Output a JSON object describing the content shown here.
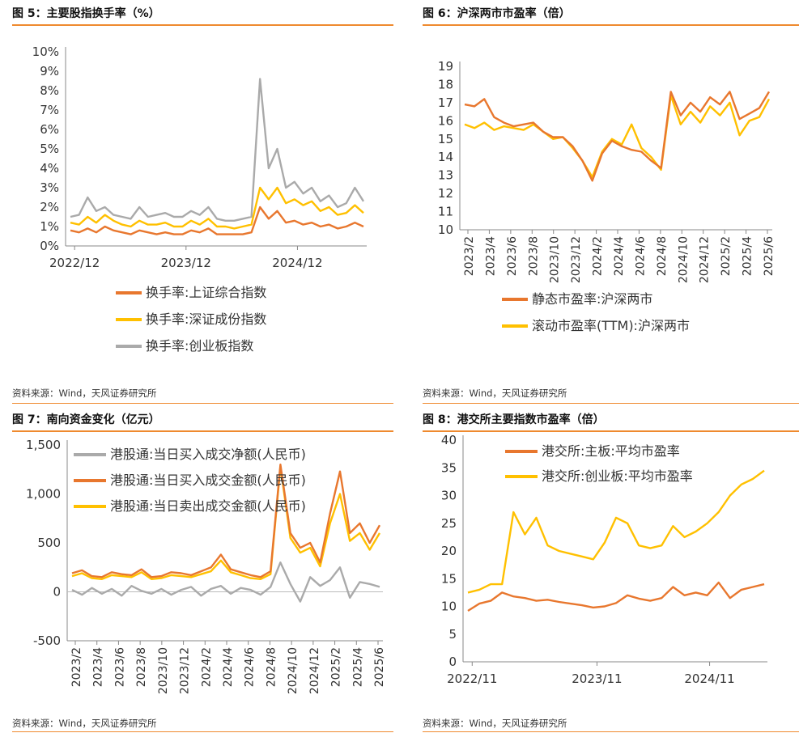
{
  "colors": {
    "orange": "#E8772E",
    "yellow": "#FFC000",
    "gray": "#AAAAAA",
    "rule": "#EF8A2E"
  },
  "source": "资料来源：Wind，天风证券研究所",
  "chart_data": [
    {
      "type": "line",
      "title": "图 5：主要股指换手率（%）",
      "y_ticks": [
        "10%",
        "9%",
        "8%",
        "7%",
        "6%",
        "5%",
        "4%",
        "3%",
        "2%",
        "1%",
        "0%"
      ],
      "ylim": [
        0,
        10
      ],
      "x_ticks": [
        "2022/12",
        "2023/12",
        "2024/12"
      ],
      "series": [
        {
          "name": "换手率:上证综合指数",
          "color": "#E8772E",
          "y": [
            0.8,
            0.7,
            0.9,
            0.7,
            1.0,
            0.8,
            0.7,
            0.6,
            0.8,
            0.7,
            0.6,
            0.7,
            0.6,
            0.6,
            0.8,
            0.7,
            0.9,
            0.6,
            0.6,
            0.6,
            0.6,
            0.7,
            2.0,
            1.4,
            1.8,
            1.2,
            1.3,
            1.1,
            1.2,
            1.0,
            1.1,
            0.9,
            1.0,
            1.2,
            1.0
          ]
        },
        {
          "name": "换手率:深证成份指数",
          "color": "#FFC000",
          "y": [
            1.2,
            1.1,
            1.5,
            1.2,
            1.6,
            1.3,
            1.1,
            1.0,
            1.3,
            1.1,
            1.1,
            1.2,
            1.0,
            1.0,
            1.3,
            1.1,
            1.4,
            1.0,
            1.0,
            0.9,
            1.0,
            1.1,
            3.0,
            2.4,
            3.0,
            2.2,
            2.4,
            2.1,
            2.3,
            1.8,
            2.0,
            1.6,
            1.7,
            2.1,
            1.7
          ]
        },
        {
          "name": "换手率:创业板指数",
          "color": "#AAAAAA",
          "y": [
            1.5,
            1.6,
            2.5,
            1.8,
            2.0,
            1.6,
            1.5,
            1.4,
            2.0,
            1.5,
            1.6,
            1.7,
            1.5,
            1.5,
            1.8,
            1.6,
            2.0,
            1.4,
            1.3,
            1.3,
            1.4,
            1.5,
            8.6,
            4.0,
            5.0,
            3.0,
            3.3,
            2.7,
            3.0,
            2.3,
            2.6,
            2.0,
            2.2,
            3.0,
            2.3
          ]
        }
      ]
    },
    {
      "type": "line",
      "title": "图 6：沪深两市市盈率（倍）",
      "y_ticks": [
        "19",
        "18",
        "17",
        "16",
        "15",
        "14",
        "13",
        "12",
        "11",
        "10"
      ],
      "ylim": [
        10,
        19
      ],
      "x_ticks": [
        "2023/2",
        "2023/4",
        "2023/6",
        "2023/8",
        "2023/10",
        "2023/12",
        "2024/2",
        "2024/4",
        "2024/6",
        "2024/8",
        "2024/10",
        "2024/12",
        "2025/2",
        "2025/4",
        "2025/6"
      ],
      "series": [
        {
          "name": "静态市盈率:沪深两市",
          "color": "#E8772E",
          "y": [
            16.9,
            16.8,
            17.2,
            16.2,
            15.9,
            15.7,
            15.8,
            15.9,
            15.4,
            15.1,
            15.1,
            14.6,
            13.8,
            12.7,
            14.2,
            14.9,
            14.6,
            14.4,
            14.3,
            13.8,
            13.4,
            17.6,
            16.3,
            17.0,
            16.5,
            17.3,
            16.9,
            17.6,
            16.1,
            16.4,
            16.7,
            17.6
          ]
        },
        {
          "name": "滚动市盈率(TTM):沪深两市",
          "color": "#FFC000",
          "y": [
            15.8,
            15.6,
            15.9,
            15.5,
            15.7,
            15.6,
            15.5,
            15.8,
            15.4,
            15.0,
            15.1,
            14.5,
            13.8,
            12.9,
            14.3,
            15.0,
            14.7,
            15.8,
            14.5,
            14.0,
            13.3,
            17.4,
            15.8,
            16.5,
            15.9,
            16.8,
            16.3,
            17.0,
            15.2,
            16.0,
            16.2,
            17.2
          ]
        }
      ]
    },
    {
      "type": "line",
      "title": "图 7：南向资金变化（亿元）",
      "y_ticks": [
        "1,500",
        "1,000",
        "500",
        "0",
        "-500"
      ],
      "ylim": [
        -500,
        1500
      ],
      "x_ticks": [
        "2023/2",
        "2023/4",
        "2023/6",
        "2023/8",
        "2023/10",
        "2023/12",
        "2024/2",
        "2024/4",
        "2024/6",
        "2024/8",
        "2024/10",
        "2024/12",
        "2025/2",
        "2025/4",
        "2025/6"
      ],
      "series": [
        {
          "name": "港股通:当日买入成交净额(人民币)",
          "color": "#AAAAAA",
          "y": [
            20,
            -30,
            40,
            -20,
            30,
            -40,
            60,
            10,
            -20,
            30,
            -30,
            20,
            50,
            -40,
            30,
            60,
            -20,
            40,
            20,
            -30,
            50,
            300,
            80,
            -100,
            150,
            60,
            120,
            250,
            -60,
            100,
            80,
            50
          ]
        },
        {
          "name": "港股通:当日买入成交金额(人民币)",
          "color": "#E8772E",
          "y": [
            190,
            220,
            160,
            150,
            200,
            180,
            170,
            230,
            150,
            160,
            200,
            190,
            170,
            210,
            250,
            380,
            230,
            200,
            170,
            150,
            210,
            1300,
            600,
            450,
            500,
            300,
            800,
            1230,
            600,
            700,
            500,
            680
          ]
        },
        {
          "name": "港股通:当日卖出成交金额(人民币)",
          "color": "#FFC000",
          "y": [
            160,
            190,
            140,
            130,
            170,
            160,
            150,
            200,
            130,
            140,
            170,
            160,
            150,
            180,
            210,
            320,
            200,
            170,
            140,
            130,
            180,
            1280,
            550,
            400,
            450,
            260,
            700,
            1000,
            520,
            600,
            430,
            600
          ]
        }
      ]
    },
    {
      "type": "line",
      "title": "图 8：港交所主要指数市盈率（倍）",
      "y_ticks": [
        "40",
        "35",
        "30",
        "25",
        "20",
        "15",
        "10",
        "5",
        "0"
      ],
      "ylim": [
        0,
        40
      ],
      "x_ticks": [
        "2022/11",
        "2023/11",
        "2024/11"
      ],
      "series": [
        {
          "name": "港交所:主板:平均市盈率",
          "color": "#E8772E",
          "y": [
            9.2,
            10.5,
            11.0,
            12.5,
            11.8,
            11.5,
            11.0,
            11.2,
            10.8,
            10.5,
            10.2,
            9.8,
            10.0,
            10.6,
            12.0,
            11.4,
            11.0,
            11.5,
            13.5,
            12.0,
            12.5,
            12.0,
            14.3,
            11.5,
            13.0,
            13.5,
            14.0
          ]
        },
        {
          "name": "港交所:创业板:平均市盈率",
          "color": "#FFC000",
          "y": [
            12.5,
            13.0,
            14.0,
            14.0,
            27.0,
            23.0,
            26.0,
            21.0,
            20.0,
            19.5,
            19.0,
            18.5,
            21.5,
            26.0,
            25.0,
            21.0,
            20.5,
            21.0,
            24.5,
            22.5,
            23.5,
            25.0,
            27.0,
            30.0,
            32.0,
            33.0,
            34.5
          ]
        }
      ]
    }
  ]
}
